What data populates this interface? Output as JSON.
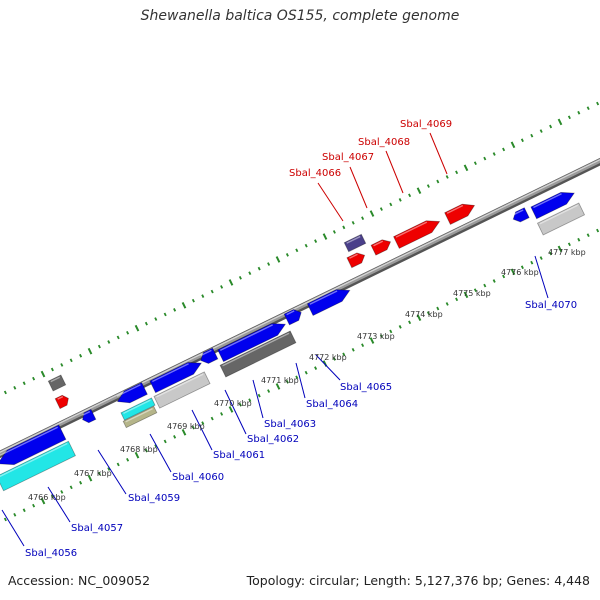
{
  "title": "Shewanella baltica OS155, complete genome",
  "footer": {
    "accession": "Accession: NC_009052",
    "summary": "Topology: circular; Length: 5,127,376 bp; Genes: 4,448"
  },
  "colors": {
    "background": "#ffffff",
    "axis": "#888888",
    "tick": "#2a8a2a",
    "scale_text": "#333333",
    "forward_label": "#cc0000",
    "reverse_label": "#0000bb",
    "blue": "#0000ee",
    "red": "#ee0000",
    "cyan": "#22e6e6",
    "gray": "#c8c8c8",
    "darkgray": "#666666",
    "purple": "#4a3f8a",
    "olive": "#b5b58a"
  },
  "scale_labels": [
    "4766 kbp",
    "4767 kbp",
    "4768 kbp",
    "4769 kbp",
    "4770 kbp",
    "4771 kbp",
    "4772 kbp",
    "4773 kbp",
    "4774 kbp",
    "4775 kbp",
    "4776 kbp",
    "4777 kbp"
  ],
  "forward_labels": [
    "Sbal_4066",
    "Sbal_4067",
    "Sbal_4068",
    "Sbal_4069"
  ],
  "reverse_labels": [
    "Sbal_4056",
    "Sbal_4057",
    "Sbal_4059",
    "Sbal_4060",
    "Sbal_4061",
    "Sbal_4062",
    "Sbal_4063",
    "Sbal_4064",
    "Sbal_4065",
    "Sbal_4070"
  ]
}
